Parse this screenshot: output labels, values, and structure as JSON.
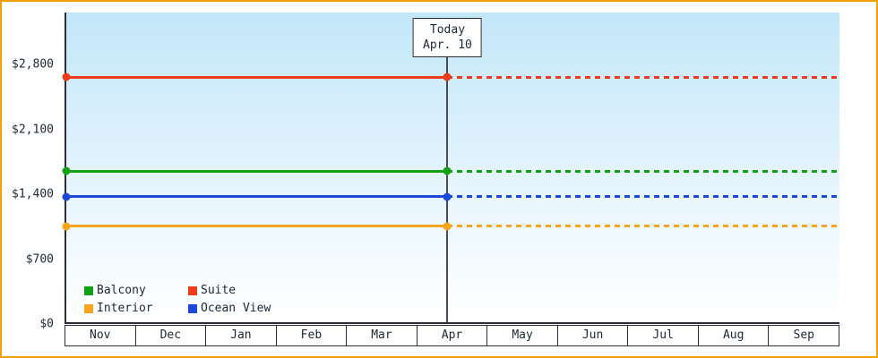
{
  "chart_data": {
    "type": "line",
    "x_categories": [
      "Nov",
      "Dec",
      "Jan",
      "Feb",
      "Mar",
      "Apr",
      "May",
      "Jun",
      "Jul",
      "Aug",
      "Sep"
    ],
    "y_ticks": [
      {
        "label": "$0",
        "value": 0
      },
      {
        "label": "$700",
        "value": 700
      },
      {
        "label": "$1,400",
        "value": 1400
      },
      {
        "label": "$2,100",
        "value": 2100
      },
      {
        "label": "$2,800",
        "value": 2800
      }
    ],
    "ylim": [
      0,
      3360
    ],
    "series": [
      {
        "name": "Balcony",
        "color": "#14a014",
        "value": 1640
      },
      {
        "name": "Suite",
        "color": "#ee3b1e",
        "value": 2660
      },
      {
        "name": "Interior",
        "color": "#f6a41c",
        "value": 1040
      },
      {
        "name": "Ocean View",
        "color": "#1d49db",
        "value": 1360
      }
    ],
    "legend_order": [
      "Balcony",
      "Suite",
      "Interior",
      "Ocean View"
    ],
    "today_annotation": {
      "line1": "Today",
      "line2": "Apr. 10",
      "x_fraction": 0.493
    },
    "layout": {
      "solid_before_today": true,
      "dotted_after_today": true,
      "legend_position": "bottom-left",
      "grid": false
    }
  },
  "colors": {
    "outer_border": "#f2a100",
    "axis": "#2e2e3a",
    "plot_gradient_top": "#c2e7f9",
    "plot_gradient_bottom": "#ffffff",
    "text": "#1d2733"
  }
}
